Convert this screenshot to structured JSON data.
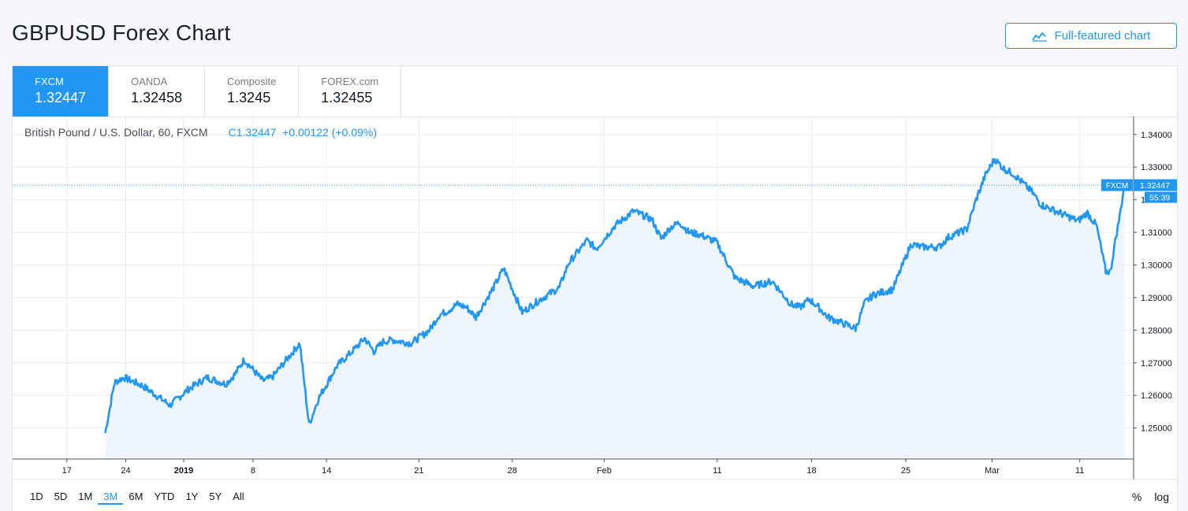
{
  "page": {
    "title": "GBPUSD Forex Chart"
  },
  "actions": {
    "full_chart_label": "Full-featured chart",
    "full_chart_icon": "chart-line-icon"
  },
  "tabs": [
    {
      "name": "FXCM",
      "value": "1.32447",
      "active": true
    },
    {
      "name": "OANDA",
      "value": "1.32458",
      "active": false
    },
    {
      "name": "Composite",
      "value": "1.3245",
      "active": false
    },
    {
      "name": "FOREX.com",
      "value": "1.32455",
      "active": false
    }
  ],
  "legend": {
    "symbol": "British Pound / U.S. Dollar, 60, FXCM",
    "ohlc": "C1.32447  +0.00122 (+0.09%)"
  },
  "price_tag": {
    "label": "FXCM",
    "value": "1.32447",
    "countdown": "55:39"
  },
  "ranges": [
    "1D",
    "5D",
    "1M",
    "3M",
    "6M",
    "YTD",
    "1Y",
    "5Y",
    "All"
  ],
  "active_range": "3M",
  "scale_options": {
    "percent": "%",
    "log": "log"
  },
  "colors": {
    "accent": "#2196f3",
    "line": "#2196f3",
    "fill": "#eef5fd",
    "grid": "#e9ecf2"
  },
  "chart_data": {
    "type": "area",
    "title": "British Pound / U.S. Dollar, 60, FXCM",
    "series": [
      {
        "name": "FXCM",
        "x": [
          10,
          11,
          12,
          14,
          17,
          19,
          21,
          23,
          24,
          25,
          27,
          28,
          29,
          31,
          32,
          33,
          35,
          37,
          38,
          39,
          40,
          41,
          43,
          45,
          46,
          47,
          48,
          49,
          50,
          52,
          53,
          55,
          57,
          59,
          60,
          62,
          63,
          65,
          67,
          69,
          70,
          71,
          72,
          73,
          74,
          76,
          78,
          80,
          82,
          84,
          85,
          86,
          87,
          88,
          91,
          92,
          93,
          95,
          97,
          98,
          100,
          101,
          103,
          104
        ],
        "y": [
          1.2485,
          1.264,
          1.2655,
          1.263,
          1.257,
          1.262,
          1.2655,
          1.2635,
          1.2665,
          1.271,
          1.2645,
          1.2655,
          1.269,
          1.276,
          1.251,
          1.259,
          1.269,
          1.2745,
          1.2775,
          1.2735,
          1.2765,
          1.277,
          1.276,
          1.28,
          1.2845,
          1.286,
          1.288,
          1.287,
          1.284,
          1.2935,
          1.299,
          1.2855,
          1.2895,
          1.293,
          1.3005,
          1.3075,
          1.305,
          1.312,
          1.3165,
          1.314,
          1.308,
          1.3115,
          1.313,
          1.31,
          1.3095,
          1.307,
          1.296,
          1.2935,
          1.295,
          1.288,
          1.287,
          1.2895,
          1.287,
          1.284,
          1.2805,
          1.2885,
          1.291,
          1.2925,
          1.3065,
          1.3055,
          1.3055,
          1.3085,
          1.311,
          1.32
        ],
        "x2": [
          105,
          106,
          107,
          108,
          110,
          111,
          113,
          115,
          116,
          117,
          117.5,
          118,
          118.5,
          119,
          119.5,
          120
        ],
        "y2": [
          1.3275,
          1.3325,
          1.3295,
          1.328,
          1.3225,
          1.3185,
          1.316,
          1.3135,
          1.316,
          1.312,
          1.305,
          1.298,
          1.298,
          1.307,
          1.315,
          1.32447
        ]
      }
    ],
    "xlabel": "",
    "ylabel": "",
    "x_ticks": [
      "17",
      "24",
      "2019",
      "8",
      "14",
      "21",
      "28",
      "Feb",
      "11",
      "18",
      "25",
      "Mar",
      "11"
    ],
    "y_ticks": [
      "1.25000",
      "1.26000",
      "1.27000",
      "1.28000",
      "1.29000",
      "1.30000",
      "1.31000",
      "1.32000",
      "1.33000",
      "1.34000"
    ],
    "ylim": [
      1.2405,
      1.3455
    ],
    "last_price": 1.32447,
    "grid": true
  }
}
